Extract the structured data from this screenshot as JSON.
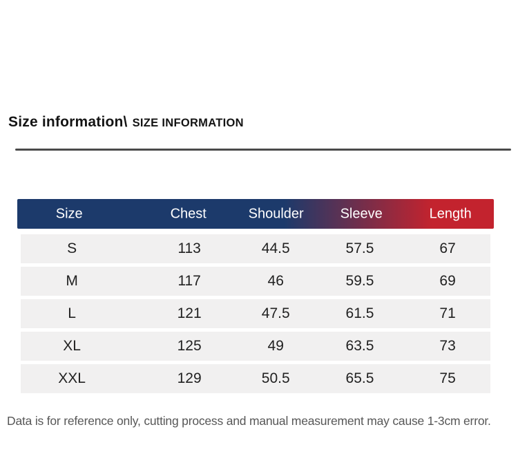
{
  "title": {
    "primary": "Size information\\",
    "secondary": "SIZE INFORMATION"
  },
  "table": {
    "columns": [
      "Size",
      "Chest",
      "Shoulder",
      "Sleeve",
      "Length"
    ],
    "rows": [
      {
        "cells": [
          "S",
          "113",
          "44.5",
          "57.5",
          "67"
        ]
      },
      {
        "cells": [
          "M",
          "117",
          "46",
          "59.5",
          "69"
        ]
      },
      {
        "cells": [
          "L",
          "121",
          "47.5",
          "61.5",
          "71"
        ]
      },
      {
        "cells": [
          "XL",
          "125",
          "49",
          "63.5",
          "73"
        ]
      },
      {
        "cells": [
          "XXL",
          "129",
          "50.5",
          "65.5",
          "75"
        ]
      }
    ],
    "header_colors": {
      "gradient_from": "#1c3a6b",
      "gradient_to": "#c3232e",
      "text": "#ffffff"
    },
    "row_background": "#f1f0f0"
  },
  "footnote": "Data is for reference only, cutting process and manual measurement may cause 1-3cm error."
}
